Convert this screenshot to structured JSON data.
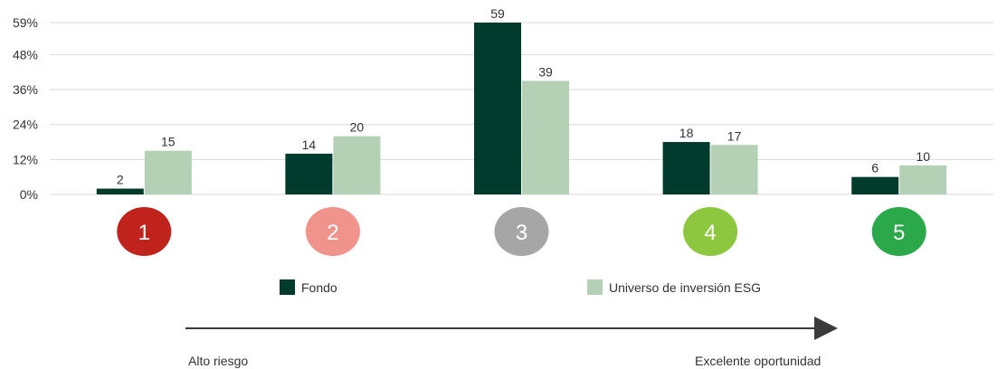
{
  "chart_data": {
    "type": "bar",
    "categories": [
      "1",
      "2",
      "3",
      "4",
      "5"
    ],
    "category_colors": [
      "#c0221c",
      "#f0938a",
      "#a6a6a6",
      "#8dc63f",
      "#2aa84a"
    ],
    "series": [
      {
        "name": "Fondo",
        "color": "#003b2e",
        "values": [
          2,
          14,
          59,
          18,
          6
        ]
      },
      {
        "name": "Universo de inversión ESG",
        "color": "#b4d1b6",
        "values": [
          15,
          20,
          39,
          17,
          10
        ]
      }
    ],
    "yticks": [
      "0%",
      "12%",
      "24%",
      "36%",
      "48%",
      "59%"
    ],
    "ytick_values": [
      0,
      12,
      24,
      36,
      48,
      59
    ],
    "ylim": [
      0,
      59
    ],
    "grid": true,
    "legend_placement": "bottom-center",
    "arrow": {
      "left_label": "Alto riesgo",
      "right_label": "Excelente oportunidad"
    }
  }
}
